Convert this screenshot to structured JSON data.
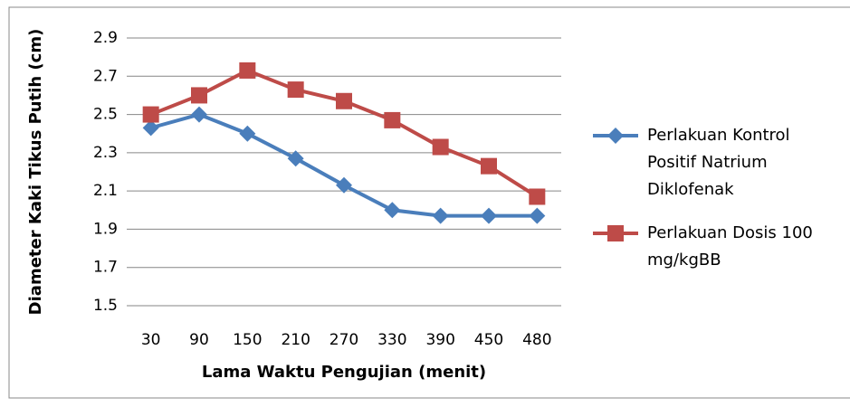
{
  "chart_data": {
    "type": "line",
    "categories": [
      "30",
      "90",
      "150",
      "210",
      "270",
      "330",
      "390",
      "450",
      "480"
    ],
    "series": [
      {
        "name": "Perlakuan Kontrol Positif Natrium Diklofenak",
        "color": "#4a7ebb",
        "marker": "diamond",
        "values": [
          2.43,
          2.5,
          2.4,
          2.27,
          2.13,
          2.0,
          1.97,
          1.97,
          1.97
        ]
      },
      {
        "name": "Perlakuan Dosis 100 mg/kgBB",
        "color": "#be4b48",
        "marker": "square",
        "values": [
          2.5,
          2.6,
          2.73,
          2.63,
          2.57,
          2.47,
          2.33,
          2.23,
          2.07
        ]
      }
    ],
    "x_label": "Lama Waktu Pengujian (menit)",
    "y_label": "Diameter Kaki Tikus Putih (cm)",
    "ylim": [
      1.5,
      2.9
    ],
    "yticks": [
      1.5,
      1.7,
      1.9,
      2.1,
      2.3,
      2.5,
      2.7,
      2.9
    ],
    "grid": true,
    "legend": "right"
  }
}
